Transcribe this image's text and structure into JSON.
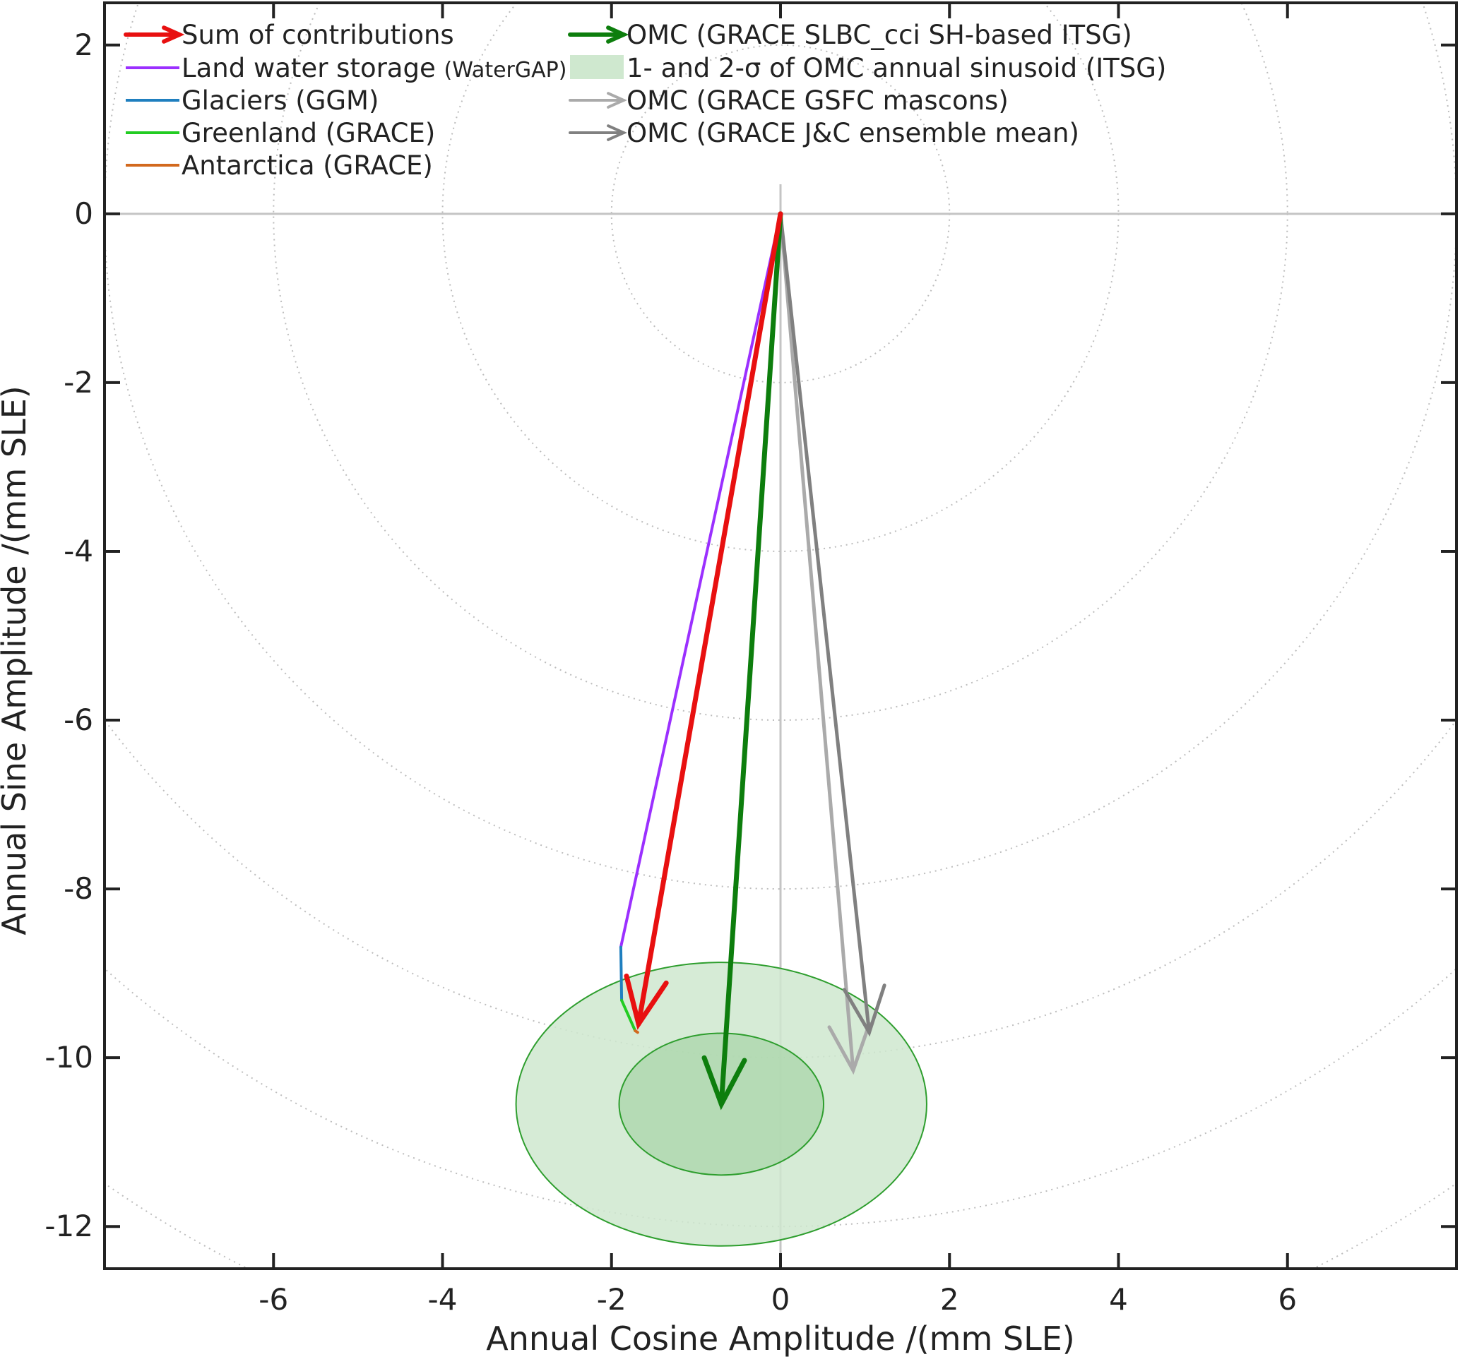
{
  "chart_data": {
    "type": "vector-phasor",
    "xlabel": "Annual Cosine Amplitude  /(mm SLE)",
    "ylabel": "Annual Sine Amplitude  /(mm SLE)",
    "xlim": [
      -8,
      8
    ],
    "ylim": [
      -12.5,
      2.5
    ],
    "xticks": [
      -6,
      -4,
      -2,
      0,
      2,
      4,
      6
    ],
    "yticks": [
      2,
      0,
      -2,
      -4,
      -6,
      -8,
      -10,
      -12
    ],
    "xtick_labels": [
      "-6",
      "-4",
      "-2",
      "0",
      "2",
      "4",
      "6"
    ],
    "ytick_labels": [
      "2",
      "0",
      "-2",
      "-4",
      "-6",
      "-8",
      "-10",
      "-12"
    ],
    "grid": "concentric dotted circles every 2 mm SLE centered at origin",
    "radial_circles": [
      2,
      4,
      6,
      8,
      10,
      12,
      14
    ],
    "legend_position": "top-left",
    "contribution_chain": [
      {
        "name": "Land water storage",
        "name_suffix": "(WaterGAP)",
        "color": "#9b30ff",
        "from": [
          0,
          0
        ],
        "to": [
          -1.89,
          -8.69
        ]
      },
      {
        "name": "Glaciers (GGM)",
        "color": "#1f7fbf",
        "from": [
          -1.89,
          -8.69
        ],
        "to": [
          -1.88,
          -9.32
        ]
      },
      {
        "name": "Greenland (GRACE)",
        "color": "#22cc22",
        "from": [
          -1.88,
          -9.32
        ],
        "to": [
          -1.72,
          -9.68
        ]
      },
      {
        "name": "Antarctica (GRACE)",
        "color": "#d2691e",
        "from": [
          -1.72,
          -9.68
        ],
        "to": [
          -1.69,
          -9.7
        ]
      }
    ],
    "arrows": [
      {
        "name": "Sum of contributions",
        "color": "#e81010",
        "from": [
          0,
          0
        ],
        "to": [
          -1.68,
          -9.6
        ]
      },
      {
        "name": "OMC (GRACE SLBC_cci SH-based ITSG)",
        "color": "#0d7e0d",
        "from": [
          0,
          0
        ],
        "to": [
          -0.7,
          -10.55
        ]
      },
      {
        "name": "OMC (GRACE GSFC mascons)",
        "color": "#aaaaaa",
        "from": [
          0,
          0
        ],
        "to": [
          0.86,
          -10.15
        ]
      },
      {
        "name": "OMC (GRACE J&C ensemble mean)",
        "color": "#808080",
        "from": [
          0,
          0
        ],
        "to": [
          1.05,
          -9.7
        ]
      }
    ],
    "uncertainty_ellipses": {
      "name": "1- and 2-σ of OMC annual sinusoid (ITSG)",
      "center": [
        -0.7,
        -10.55
      ],
      "one_sigma_radii": [
        1.21,
        0.84
      ],
      "two_sigma_radii": [
        2.43,
        1.68
      ],
      "fill": "#cfe8cf",
      "stroke": "#2e9e2e"
    }
  },
  "legend": {
    "col1": [
      {
        "label": "Sum of contributions",
        "suffix": "",
        "symbol": "arrow",
        "color": "#e81010"
      },
      {
        "label": "Land water storage",
        "suffix": "(WaterGAP)",
        "symbol": "line",
        "color": "#9b30ff"
      },
      {
        "label": "Glaciers (GGM)",
        "suffix": "",
        "symbol": "line",
        "color": "#1f7fbf"
      },
      {
        "label": "Greenland (GRACE)",
        "suffix": "",
        "symbol": "line",
        "color": "#22cc22"
      },
      {
        "label": "Antarctica (GRACE)",
        "suffix": "",
        "symbol": "line",
        "color": "#d2691e"
      }
    ],
    "col2": [
      {
        "label": "OMC (GRACE SLBC_cci SH-based ITSG)",
        "symbol": "arrow",
        "color": "#0d7e0d"
      },
      {
        "label": "1- and 2-σ of OMC annual sinusoid (ITSG)",
        "symbol": "patch",
        "color": "#cfe8cf"
      },
      {
        "label": "OMC (GRACE GSFC mascons)",
        "symbol": "arrow",
        "color": "#aaaaaa"
      },
      {
        "label": "OMC (GRACE J&C ensemble mean)",
        "symbol": "arrow",
        "color": "#808080"
      }
    ]
  }
}
